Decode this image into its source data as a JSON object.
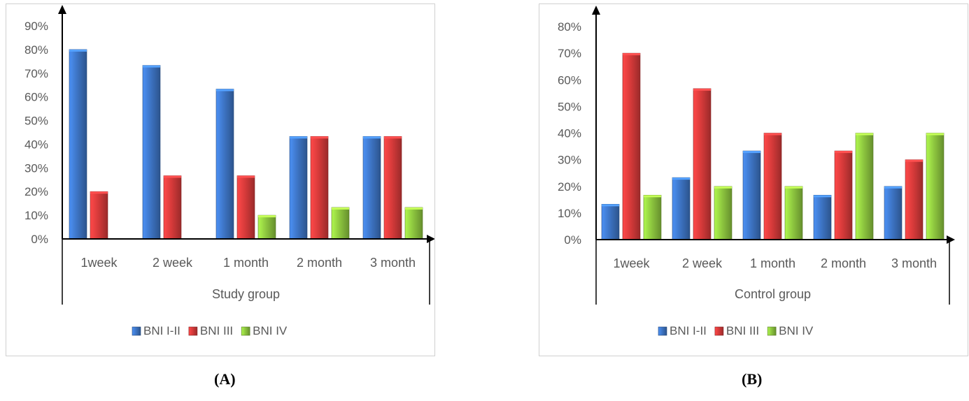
{
  "colors": {
    "BNI I-II": "#3d74c4",
    "BNI III": "#d63a3a",
    "BNI IV": "#8dc63f",
    "axis": "#000000",
    "text": "#595959"
  },
  "panel_labels": [
    "(A)",
    "(B)"
  ],
  "chart_data": [
    {
      "type": "bar",
      "categories": [
        "1week",
        "2 week",
        "1 month",
        "2 month",
        "3 month"
      ],
      "xlabel": "Study group",
      "ylabel": "",
      "ylim": [
        0,
        90
      ],
      "yticks": [
        "0%",
        "10%",
        "20%",
        "30%",
        "40%",
        "50%",
        "60%",
        "70%",
        "80%",
        "90%"
      ],
      "grid": false,
      "legend_position": "bottom",
      "series": [
        {
          "name": "BNI I-II",
          "values": [
            80,
            73.3,
            63.3,
            43.3,
            43.3
          ]
        },
        {
          "name": "BNI III",
          "values": [
            20,
            26.7,
            26.7,
            43.3,
            43.3
          ]
        },
        {
          "name": "BNI IV",
          "values": [
            0,
            0,
            10,
            13.3,
            13.3
          ]
        }
      ]
    },
    {
      "type": "bar",
      "categories": [
        "1week",
        "2 week",
        "1 month",
        "2 month",
        "3 month"
      ],
      "xlabel": "Control group",
      "ylabel": "",
      "ylim": [
        0,
        80
      ],
      "yticks": [
        "0%",
        "10%",
        "20%",
        "30%",
        "40%",
        "50%",
        "60%",
        "70%",
        "80%"
      ],
      "grid": false,
      "legend_position": "bottom",
      "series": [
        {
          "name": "BNI I-II",
          "values": [
            13.3,
            23.3,
            33.3,
            16.7,
            20
          ]
        },
        {
          "name": "BNI III",
          "values": [
            70,
            56.7,
            40,
            33.3,
            30
          ]
        },
        {
          "name": "BNI IV",
          "values": [
            16.7,
            20,
            20,
            40,
            40
          ]
        }
      ]
    }
  ]
}
